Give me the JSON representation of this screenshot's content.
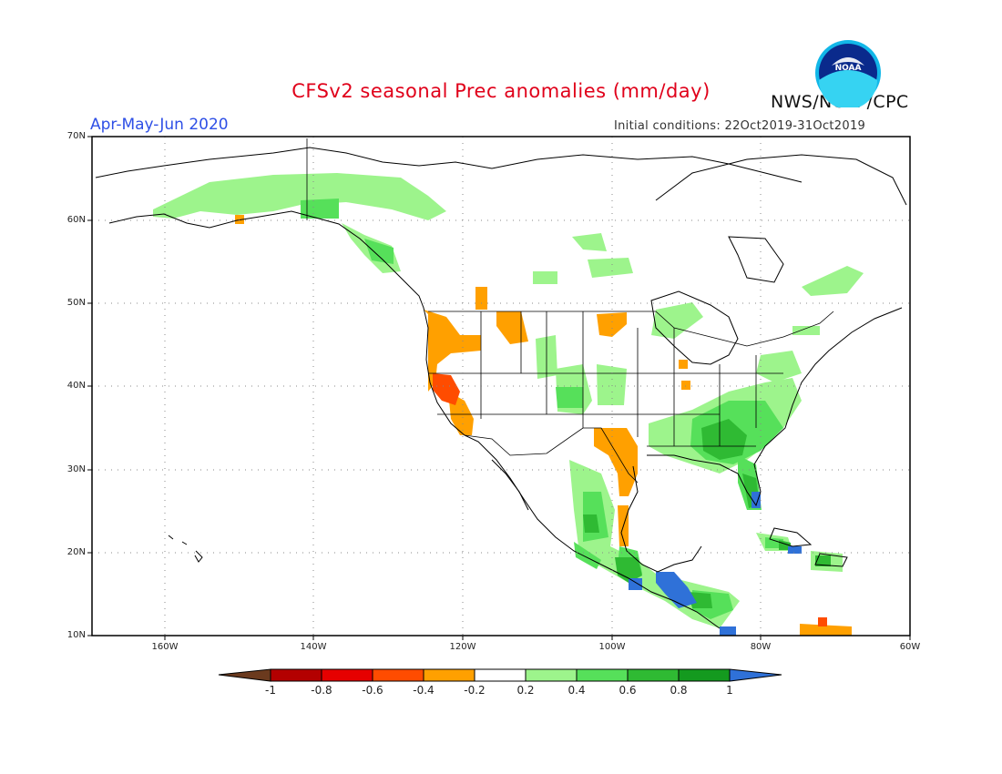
{
  "header": {
    "title": "CFSv2 seasonal Prec anomalies (mm/day)",
    "season": "Apr-May-Jun 2020",
    "initial_conditions": "Initial conditions: 22Oct2019-31Oct2019",
    "agency": "NWS/NCEP/CPC",
    "logo_text": "NOAA"
  },
  "axes": {
    "lat_labels": [
      "70N",
      "60N",
      "50N",
      "40N",
      "30N",
      "20N",
      "10N"
    ],
    "lon_labels": [
      "160W",
      "140W",
      "120W",
      "100W",
      "80W",
      "60W"
    ]
  },
  "colorbar": {
    "labels": [
      "-1",
      "-0.8",
      "-0.6",
      "-0.4",
      "-0.2",
      "0.2",
      "0.4",
      "0.6",
      "0.8",
      "1"
    ],
    "colors": [
      "#6b3a1e",
      "#b30000",
      "#e60000",
      "#ff4c00",
      "#ffa000",
      "#ffffff",
      "#9df48c",
      "#56e05a",
      "#2fba33",
      "#149a1f",
      "#2f71d8"
    ]
  },
  "colors": {
    "title": "#e0001a",
    "season": "#2e4fe6",
    "map_border": "#000000",
    "grid": "#888888"
  }
}
